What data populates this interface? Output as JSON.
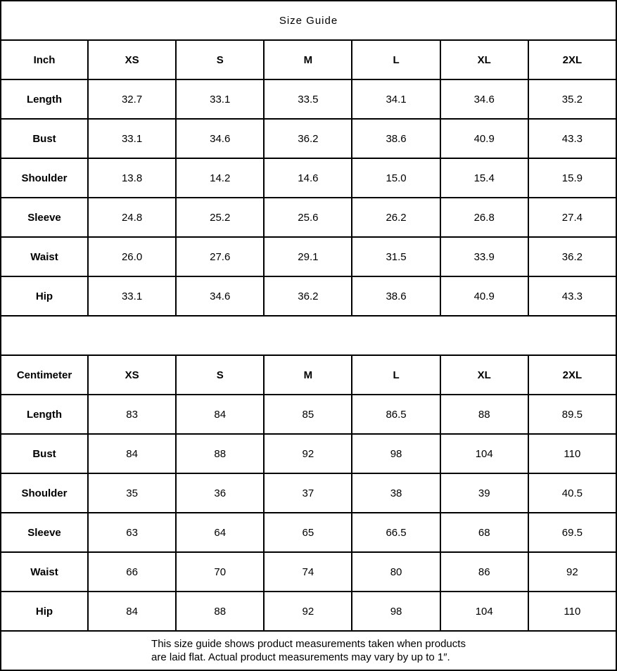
{
  "title": "Size Guide",
  "tables": [
    {
      "unit_label": "Inch",
      "sizes": [
        "XS",
        "S",
        "M",
        "L",
        "XL",
        "2XL"
      ],
      "rows": [
        {
          "label": "Length",
          "values": [
            "32.7",
            "33.1",
            "33.5",
            "34.1",
            "34.6",
            "35.2"
          ]
        },
        {
          "label": "Bust",
          "values": [
            "33.1",
            "34.6",
            "36.2",
            "38.6",
            "40.9",
            "43.3"
          ]
        },
        {
          "label": "Shoulder",
          "values": [
            "13.8",
            "14.2",
            "14.6",
            "15.0",
            "15.4",
            "15.9"
          ]
        },
        {
          "label": "Sleeve",
          "values": [
            "24.8",
            "25.2",
            "25.6",
            "26.2",
            "26.8",
            "27.4"
          ]
        },
        {
          "label": "Waist",
          "values": [
            "26.0",
            "27.6",
            "29.1",
            "31.5",
            "33.9",
            "36.2"
          ]
        },
        {
          "label": "Hip",
          "values": [
            "33.1",
            "34.6",
            "36.2",
            "38.6",
            "40.9",
            "43.3"
          ]
        }
      ]
    },
    {
      "unit_label": "Centimeter",
      "sizes": [
        "XS",
        "S",
        "M",
        "L",
        "XL",
        "2XL"
      ],
      "rows": [
        {
          "label": "Length",
          "values": [
            "83",
            "84",
            "85",
            "86.5",
            "88",
            "89.5"
          ]
        },
        {
          "label": "Bust",
          "values": [
            "84",
            "88",
            "92",
            "98",
            "104",
            "110"
          ]
        },
        {
          "label": "Shoulder",
          "values": [
            "35",
            "36",
            "37",
            "38",
            "39",
            "40.5"
          ]
        },
        {
          "label": "Sleeve",
          "values": [
            "63",
            "64",
            "65",
            "66.5",
            "68",
            "69.5"
          ]
        },
        {
          "label": "Waist",
          "values": [
            "66",
            "70",
            "74",
            "80",
            "86",
            "92"
          ]
        },
        {
          "label": "Hip",
          "values": [
            "84",
            "88",
            "92",
            "98",
            "104",
            "110"
          ]
        }
      ]
    }
  ],
  "footer": {
    "line1": "This size guide shows product measurements taken when products",
    "line2": "are laid flat. Actual product measurements may vary by up to 1″."
  },
  "colors": {
    "border": "#000000",
    "background": "#ffffff",
    "text": "#000000"
  }
}
